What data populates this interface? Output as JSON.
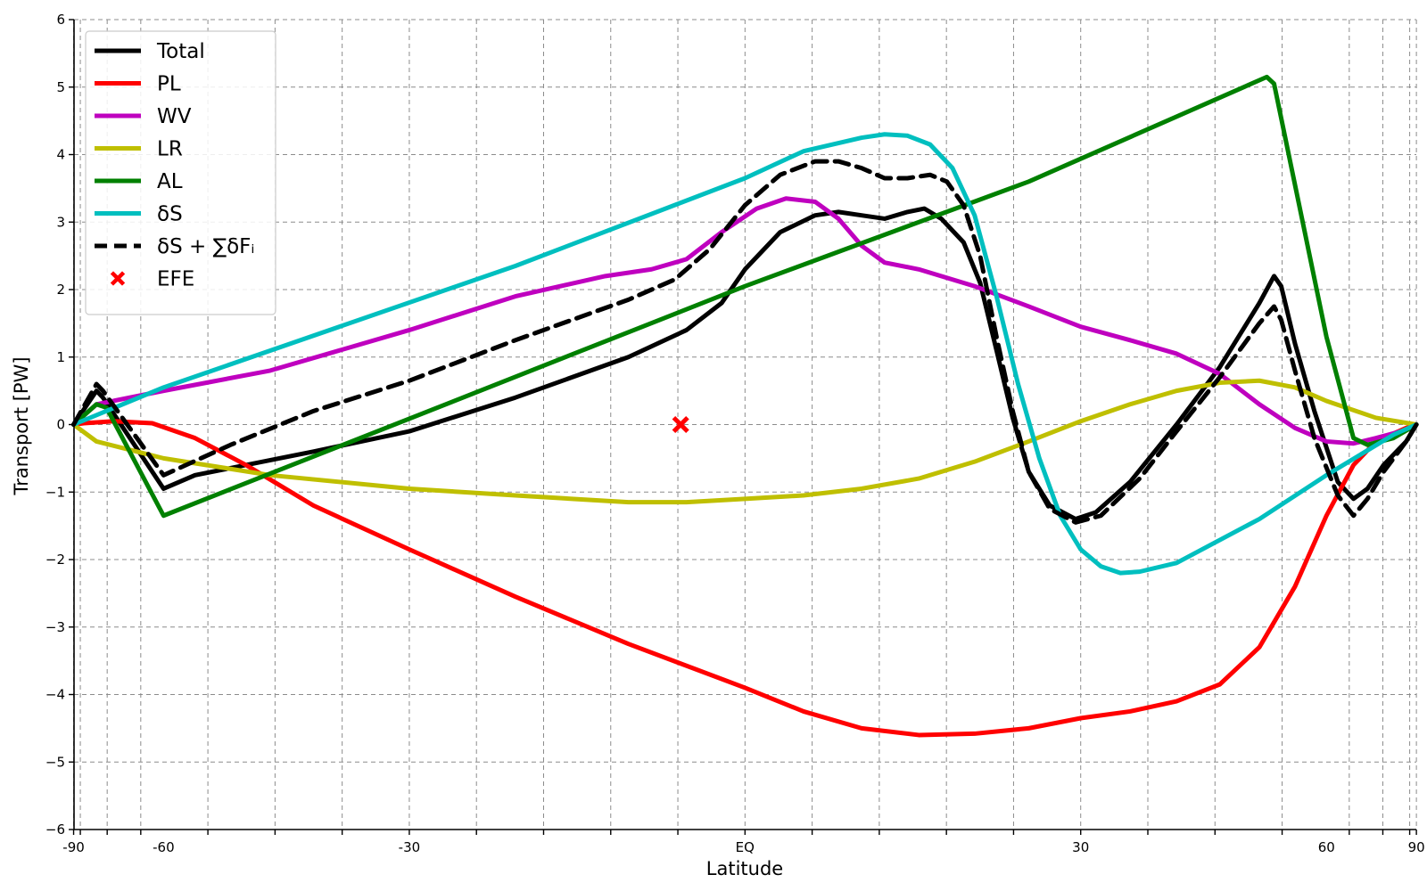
{
  "chart_data": {
    "type": "line",
    "title": "",
    "xlabel": "Latitude",
    "ylabel": "Transport [PW]",
    "xlim": [
      -92,
      91
    ],
    "ylim": [
      -6,
      6
    ],
    "grid": true,
    "legend_position": "top-left",
    "x_ticks": [
      {
        "v": -90,
        "label": "-90"
      },
      {
        "v": -60,
        "label": "-60"
      },
      {
        "v": -30,
        "label": "-30"
      },
      {
        "v": 0,
        "label": "EQ"
      },
      {
        "v": 30,
        "label": "30"
      },
      {
        "v": 60,
        "label": "60"
      },
      {
        "v": 90,
        "label": "90"
      }
    ],
    "x_grid_sines": [
      -1.0,
      -0.99,
      -0.95,
      -0.9,
      -0.8,
      -0.7,
      -0.6,
      -0.5,
      -0.4,
      -0.3,
      -0.2,
      -0.1,
      0.0,
      0.1,
      0.2,
      0.3,
      0.4,
      0.5,
      0.6,
      0.7,
      0.8,
      0.9,
      0.95,
      0.99,
      1.0
    ],
    "y_ticks": [
      {
        "v": 6,
        "label": "6"
      },
      {
        "v": 5,
        "label": "5"
      },
      {
        "v": 4,
        "label": "4"
      },
      {
        "v": 3,
        "label": "3"
      },
      {
        "v": 2,
        "label": "2"
      },
      {
        "v": 1,
        "label": "1"
      },
      {
        "v": 0,
        "label": "0"
      },
      {
        "v": -1,
        "label": "−1"
      },
      {
        "v": -2,
        "label": "−2"
      },
      {
        "v": -3,
        "label": "−3"
      },
      {
        "v": -4,
        "label": "−4"
      },
      {
        "v": -5,
        "label": "−5"
      },
      {
        "v": -6,
        "label": "−6"
      }
    ],
    "series": [
      {
        "name": "Total",
        "color": "#000000",
        "dashed": false,
        "points": [
          [
            -90,
            0
          ],
          [
            -75,
            0.5
          ],
          [
            -73,
            0.4
          ],
          [
            -60,
            -0.95
          ],
          [
            -55,
            -0.75
          ],
          [
            -40,
            -0.4
          ],
          [
            -30,
            -0.1
          ],
          [
            -20,
            0.4
          ],
          [
            -10,
            1.0
          ],
          [
            -5,
            1.4
          ],
          [
            -2,
            1.8
          ],
          [
            0,
            2.3
          ],
          [
            3,
            2.85
          ],
          [
            6,
            3.1
          ],
          [
            8,
            3.15
          ],
          [
            10,
            3.1
          ],
          [
            12,
            3.05
          ],
          [
            14,
            3.15
          ],
          [
            15.5,
            3.2
          ],
          [
            17,
            3.05
          ],
          [
            19,
            2.7
          ],
          [
            20.5,
            2.1
          ],
          [
            22,
            1.1
          ],
          [
            23.5,
            0.1
          ],
          [
            25,
            -0.7
          ],
          [
            27,
            -1.2
          ],
          [
            29.5,
            -1.4
          ],
          [
            31.5,
            -1.3
          ],
          [
            35,
            -0.85
          ],
          [
            40,
            0.0
          ],
          [
            45,
            0.85
          ],
          [
            50,
            1.8
          ],
          [
            52,
            2.2
          ],
          [
            53,
            2.05
          ],
          [
            55,
            1.2
          ],
          [
            58,
            0.2
          ],
          [
            62,
            -0.85
          ],
          [
            65,
            -1.1
          ],
          [
            68,
            -0.95
          ],
          [
            72,
            -0.6
          ],
          [
            80,
            -0.25
          ],
          [
            90,
            0
          ]
        ]
      },
      {
        "name": "PL",
        "color": "#ff0000",
        "dashed": false,
        "points": [
          [
            -90,
            0
          ],
          [
            -80,
            0.02
          ],
          [
            -70,
            0.05
          ],
          [
            -62,
            0.02
          ],
          [
            -55,
            -0.2
          ],
          [
            -48,
            -0.6
          ],
          [
            -40,
            -1.2
          ],
          [
            -30,
            -1.85
          ],
          [
            -20,
            -2.55
          ],
          [
            -10,
            -3.25
          ],
          [
            0,
            -3.9
          ],
          [
            5,
            -4.25
          ],
          [
            10,
            -4.5
          ],
          [
            15,
            -4.6
          ],
          [
            20,
            -4.58
          ],
          [
            25,
            -4.5
          ],
          [
            30,
            -4.35
          ],
          [
            35,
            -4.25
          ],
          [
            40,
            -4.1
          ],
          [
            45,
            -3.85
          ],
          [
            50,
            -3.3
          ],
          [
            55,
            -2.4
          ],
          [
            60,
            -1.35
          ],
          [
            65,
            -0.6
          ],
          [
            70,
            -0.25
          ],
          [
            80,
            -0.05
          ],
          [
            90,
            0
          ]
        ]
      },
      {
        "name": "WV",
        "color": "#bf00bf",
        "dashed": false,
        "points": [
          [
            -90,
            0
          ],
          [
            -75,
            0.3
          ],
          [
            -60,
            0.5
          ],
          [
            -45,
            0.8
          ],
          [
            -30,
            1.4
          ],
          [
            -20,
            1.9
          ],
          [
            -12,
            2.2
          ],
          [
            -8,
            2.3
          ],
          [
            -5,
            2.45
          ],
          [
            -2,
            2.85
          ],
          [
            1,
            3.2
          ],
          [
            3.5,
            3.35
          ],
          [
            6,
            3.3
          ],
          [
            8,
            3.05
          ],
          [
            10,
            2.65
          ],
          [
            12,
            2.4
          ],
          [
            15,
            2.3
          ],
          [
            20,
            2.05
          ],
          [
            25,
            1.75
          ],
          [
            30,
            1.45
          ],
          [
            35,
            1.25
          ],
          [
            40,
            1.05
          ],
          [
            45,
            0.75
          ],
          [
            50,
            0.3
          ],
          [
            55,
            -0.05
          ],
          [
            60,
            -0.25
          ],
          [
            65,
            -0.28
          ],
          [
            70,
            -0.2
          ],
          [
            80,
            -0.08
          ],
          [
            90,
            0
          ]
        ]
      },
      {
        "name": "LR",
        "color": "#bfbf00",
        "dashed": false,
        "points": [
          [
            -90,
            0
          ],
          [
            -75,
            -0.25
          ],
          [
            -60,
            -0.5
          ],
          [
            -45,
            -0.75
          ],
          [
            -30,
            -0.95
          ],
          [
            -20,
            -1.05
          ],
          [
            -10,
            -1.15
          ],
          [
            -5,
            -1.15
          ],
          [
            0,
            -1.1
          ],
          [
            5,
            -1.05
          ],
          [
            10,
            -0.95
          ],
          [
            15,
            -0.8
          ],
          [
            20,
            -0.55
          ],
          [
            25,
            -0.25
          ],
          [
            30,
            0.05
          ],
          [
            35,
            0.3
          ],
          [
            40,
            0.5
          ],
          [
            45,
            0.62
          ],
          [
            50,
            0.65
          ],
          [
            55,
            0.55
          ],
          [
            60,
            0.35
          ],
          [
            70,
            0.1
          ],
          [
            90,
            0
          ]
        ]
      },
      {
        "name": "AL",
        "color": "#008000",
        "dashed": false,
        "points": [
          [
            -90,
            0
          ],
          [
            -75,
            0.3
          ],
          [
            -72,
            0.25
          ],
          [
            -60,
            -1.35
          ],
          [
            0,
            2.05
          ],
          [
            25,
            3.6
          ],
          [
            51,
            5.15
          ],
          [
            52,
            5.05
          ],
          [
            60,
            1.3
          ],
          [
            65,
            -0.2
          ],
          [
            68,
            -0.3
          ],
          [
            75,
            -0.2
          ],
          [
            90,
            0
          ]
        ]
      },
      {
        "name": "δS",
        "color": "#00bfbf",
        "dashed": false,
        "points": [
          [
            -90,
            0
          ],
          [
            -60,
            0.55
          ],
          [
            -20,
            2.35
          ],
          [
            0,
            3.65
          ],
          [
            5,
            4.05
          ],
          [
            10,
            4.25
          ],
          [
            12,
            4.3
          ],
          [
            14,
            4.28
          ],
          [
            16,
            4.15
          ],
          [
            18,
            3.8
          ],
          [
            20,
            3.1
          ],
          [
            22,
            1.9
          ],
          [
            24,
            0.6
          ],
          [
            26,
            -0.5
          ],
          [
            28,
            -1.35
          ],
          [
            30,
            -1.85
          ],
          [
            32,
            -2.1
          ],
          [
            34,
            -2.2
          ],
          [
            36,
            -2.18
          ],
          [
            40,
            -2.05
          ],
          [
            50,
            -1.4
          ],
          [
            60,
            -0.75
          ],
          [
            75,
            -0.15
          ],
          [
            90,
            0
          ]
        ]
      },
      {
        "name": "δS + ∑δFᵢ",
        "color": "#000000",
        "dashed": true,
        "points": [
          [
            -90,
            0
          ],
          [
            -75,
            0.6
          ],
          [
            -73,
            0.5
          ],
          [
            -60,
            -0.75
          ],
          [
            -50,
            -0.3
          ],
          [
            -40,
            0.2
          ],
          [
            -30,
            0.65
          ],
          [
            -20,
            1.25
          ],
          [
            -10,
            1.85
          ],
          [
            -6,
            2.15
          ],
          [
            -3,
            2.6
          ],
          [
            0,
            3.25
          ],
          [
            3,
            3.7
          ],
          [
            6,
            3.9
          ],
          [
            8,
            3.9
          ],
          [
            10,
            3.8
          ],
          [
            12,
            3.65
          ],
          [
            14,
            3.65
          ],
          [
            16,
            3.7
          ],
          [
            17.5,
            3.6
          ],
          [
            19,
            3.25
          ],
          [
            20.5,
            2.5
          ],
          [
            22,
            1.3
          ],
          [
            23.5,
            0.2
          ],
          [
            25,
            -0.7
          ],
          [
            27,
            -1.25
          ],
          [
            29.5,
            -1.45
          ],
          [
            32,
            -1.35
          ],
          [
            36,
            -0.8
          ],
          [
            40,
            -0.1
          ],
          [
            45,
            0.7
          ],
          [
            50,
            1.5
          ],
          [
            52,
            1.75
          ],
          [
            53,
            1.55
          ],
          [
            55,
            0.8
          ],
          [
            58,
            -0.2
          ],
          [
            62,
            -1.05
          ],
          [
            65,
            -1.35
          ],
          [
            68,
            -1.1
          ],
          [
            72,
            -0.7
          ],
          [
            80,
            -0.25
          ],
          [
            90,
            0
          ]
        ]
      }
    ],
    "markers": [
      {
        "name": "EFE",
        "x": -5.5,
        "y": 0,
        "color": "#ff0000",
        "shape": "X"
      }
    ]
  }
}
